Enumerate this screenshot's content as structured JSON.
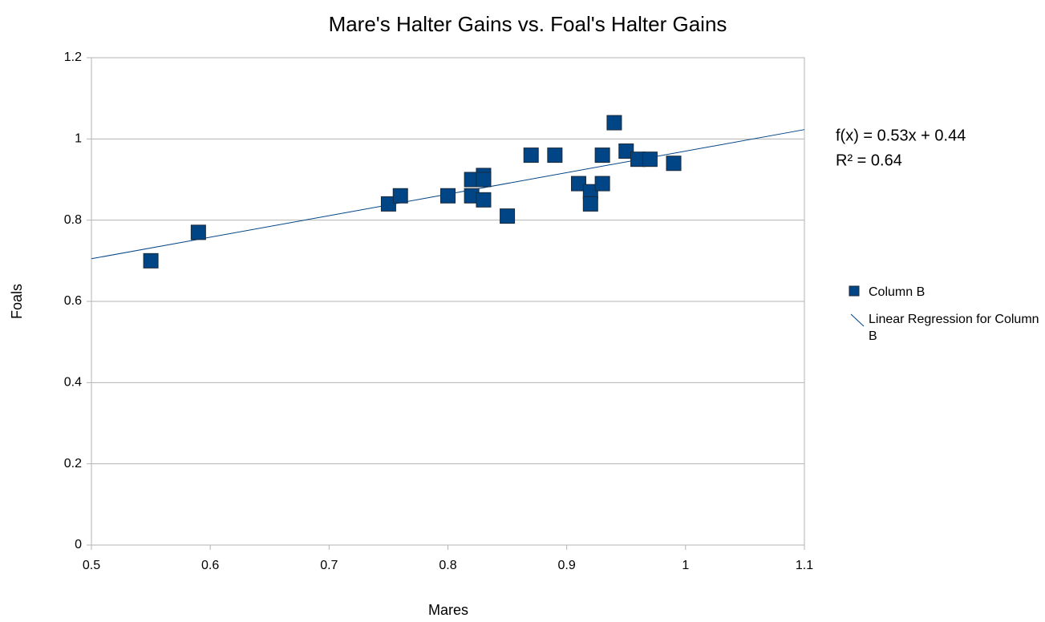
{
  "chart_data": {
    "type": "scatter",
    "title": "Mare's Halter Gains vs. Foal's Halter Gains",
    "x_label": "Mares",
    "y_label": "Foals",
    "xlim": [
      0.5,
      1.1
    ],
    "xticks": [
      0.5,
      0.6,
      0.7,
      0.8,
      0.9,
      1,
      1.1
    ],
    "ylim": [
      0,
      1.2
    ],
    "yticks": [
      0,
      0.2,
      0.4,
      0.6,
      0.8,
      1,
      1.2
    ],
    "grid": true,
    "series": [
      {
        "name": "Column B",
        "color": "#004586",
        "x": [
          0.55,
          0.59,
          0.75,
          0.76,
          0.8,
          0.82,
          0.82,
          0.83,
          0.83,
          0.83,
          0.85,
          0.87,
          0.89,
          0.91,
          0.92,
          0.92,
          0.93,
          0.93,
          0.94,
          0.95,
          0.96,
          0.97,
          0.99
        ],
        "values": [
          0.7,
          0.77,
          0.84,
          0.86,
          0.86,
          0.9,
          0.86,
          0.91,
          0.9,
          0.85,
          0.81,
          0.96,
          0.96,
          0.89,
          0.87,
          0.84,
          0.96,
          0.89,
          1.04,
          0.97,
          0.95,
          0.95,
          0.94
        ]
      }
    ],
    "trendline": {
      "name": "Linear Regression for Column B",
      "color": "#004586",
      "equation": "f(x) = 0.53x + 0.44",
      "r_squared": "R² = 0.64",
      "slope": 0.53,
      "intercept": 0.44
    }
  }
}
